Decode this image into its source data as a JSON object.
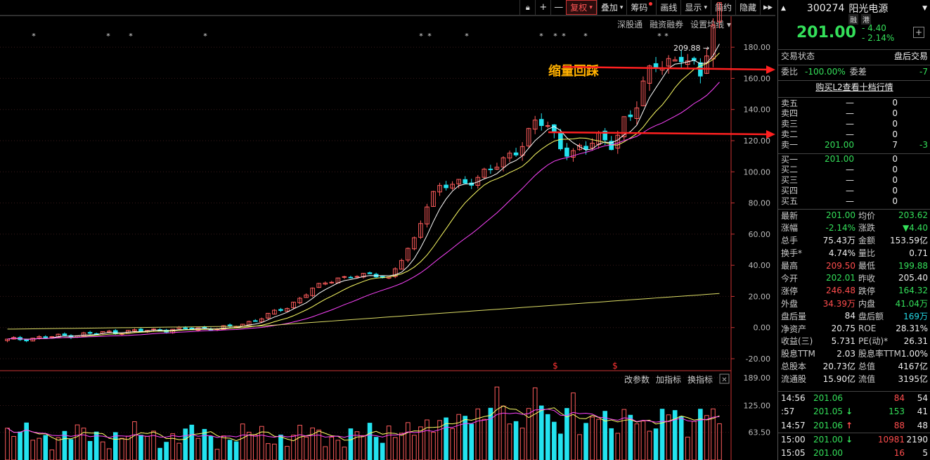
{
  "toolbar": {
    "buttons": [
      "复权",
      "叠加",
      "筹码",
      "画线",
      "显示",
      "简约",
      "隐藏"
    ],
    "lock_icon": "lock-icon",
    "plus_glyph": "+",
    "minus_glyph": "—",
    "more_glyph": "▸▸",
    "dropdown_glyph": "▾"
  },
  "subbar": {
    "items": [
      "深股通",
      "融资融券",
      "设置均线"
    ],
    "dropdown_glyph": "▾"
  },
  "indicator_bar": {
    "items": [
      "改参数",
      "加指标",
      "换指标"
    ],
    "close_glyph": "✕"
  },
  "annotation": {
    "text": "缩量回踩",
    "high_label": "209.88",
    "arrow_glyph": "→"
  },
  "symbol": {
    "marker": "$"
  },
  "chart_data": [
    {
      "type": "candlestick",
      "title": "",
      "ylim": [
        -20,
        190
      ],
      "yticks": [
        -20,
        0,
        20,
        40,
        60,
        80,
        100,
        120,
        140,
        160,
        180
      ],
      "ytick_labels": [
        "-20.00",
        "0.00",
        "20.00",
        "40.00",
        "60.00",
        "80.00",
        "100.00",
        "120.00",
        "140.00",
        "160.00",
        "180.00"
      ],
      "series_colors": {
        "up": "#ff5c5c",
        "down": "#23e3ef",
        "ma1": "#ffffff",
        "ma2": "#ffff66",
        "ma3": "#ff44ff",
        "ma4": "#dddd66"
      }
    },
    {
      "type": "bar",
      "title": "volume",
      "ylim": [
        0,
        200
      ],
      "yticks": [
        63.5,
        125,
        189
      ],
      "ytick_labels": [
        "63.50",
        "125.00",
        "189.00"
      ]
    }
  ],
  "quote": {
    "code": "300274",
    "name": "阳光电源",
    "badges": [
      "融",
      "港"
    ],
    "price": "201.00",
    "change": "- 4.40",
    "change_pct": "- 2.14%",
    "plus_glyph": "+",
    "up_glyph": "▲",
    "down_glyph": "▼"
  },
  "status": {
    "label": "交易状态",
    "value": "盘后交易"
  },
  "weibi": {
    "l1": "委比",
    "v1": "-100.00%",
    "l2": "委差",
    "v2": "-7"
  },
  "l2_link": "购买L2查看十档行情",
  "asks": [
    [
      "卖五",
      "—",
      "0",
      ""
    ],
    [
      "卖四",
      "—",
      "0",
      ""
    ],
    [
      "卖三",
      "—",
      "0",
      ""
    ],
    [
      "卖二",
      "—",
      "0",
      ""
    ],
    [
      "卖一",
      "201.00",
      "7",
      "-3"
    ]
  ],
  "bids": [
    [
      "买一",
      "201.00",
      "0",
      ""
    ],
    [
      "买二",
      "—",
      "0",
      ""
    ],
    [
      "买三",
      "—",
      "0",
      ""
    ],
    [
      "买四",
      "—",
      "0",
      ""
    ],
    [
      "买五",
      "—",
      "0",
      ""
    ]
  ],
  "stats": [
    [
      "最新",
      "201.00",
      "均价",
      "203.62"
    ],
    [
      "涨幅",
      "-2.14%",
      "涨跌",
      "▼4.40"
    ],
    [
      "总手",
      "75.43万",
      "金额",
      "153.59亿"
    ],
    [
      "换手*",
      "4.74%",
      "量比",
      "0.71"
    ],
    [
      "最高",
      "209.50",
      "最低",
      "199.88"
    ],
    [
      "今开",
      "202.01",
      "昨收",
      "205.40"
    ],
    [
      "涨停",
      "246.48",
      "跌停",
      "164.32"
    ],
    [
      "外盘",
      "34.39万",
      "内盘",
      "41.04万"
    ],
    [
      "盘后量",
      "84",
      "盘后额",
      "169万"
    ],
    [
      "净资产",
      "20.75",
      "ROE",
      "28.31%"
    ],
    [
      "收益(三)",
      "5.731",
      "PE(动)*",
      "26.31"
    ],
    [
      "股息TTM",
      "2.03",
      "股息率TTM",
      "1.00%"
    ],
    [
      "总股本",
      "20.73亿",
      "总值",
      "4167亿"
    ],
    [
      "流通股",
      "15.90亿",
      "流值",
      "3195亿"
    ]
  ],
  "ticks": [
    [
      "14:56",
      "201.06",
      "",
      "84",
      "54"
    ],
    [
      ":57",
      "201.05",
      "↓",
      "153",
      "41"
    ],
    [
      "14:57",
      "201.06",
      "↑",
      "88",
      "48"
    ],
    [
      "15:00",
      "201.00",
      "↓",
      "10981",
      "2190"
    ],
    [
      "15:05",
      "201.00",
      "",
      "16",
      "5"
    ]
  ]
}
